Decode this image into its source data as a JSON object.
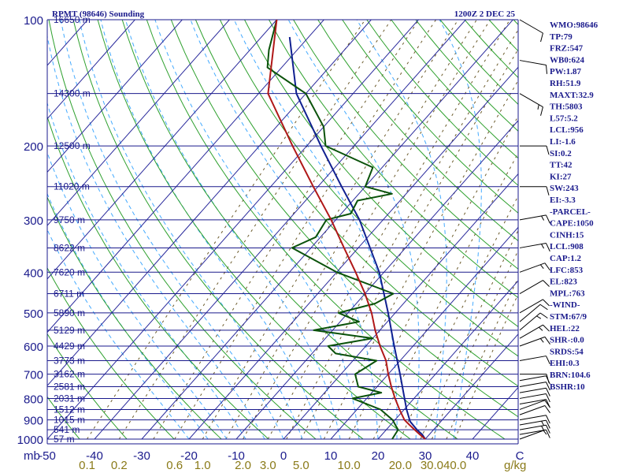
{
  "header": {
    "station": "RPMT (98646) Sounding",
    "time": "1200Z  2 DEC 25"
  },
  "colors": {
    "isobar": "#1a1a8c",
    "isotherm": "#2a2a9c",
    "dry_adiabat": "#2ea02e",
    "moist_adiabat": "#44aaff",
    "mixing_ratio": "#6b5a2a",
    "temperature": "#b01818",
    "dewpoint": "#0a520a",
    "parcel": "#102090",
    "text": "#1a1a8c",
    "mixing_label": "#8a7a18"
  },
  "chart_data": {
    "type": "skew-t",
    "y_scale": "log",
    "ylim": [
      1000,
      100
    ],
    "xlim": [
      -50,
      50
    ],
    "pressure_levels": [
      {
        "p": 100,
        "label": "100",
        "height": "16650 m"
      },
      {
        "p": 150,
        "label": "",
        "height": "14300 m"
      },
      {
        "p": 200,
        "label": "200",
        "height": "12500 m"
      },
      {
        "p": 250,
        "label": "",
        "height": "11020 m"
      },
      {
        "p": 300,
        "label": "300",
        "height": "9750 m"
      },
      {
        "p": 350,
        "label": "",
        "height": "8622 m"
      },
      {
        "p": 400,
        "label": "400",
        "height": "7620 m"
      },
      {
        "p": 450,
        "label": "",
        "height": "6711 m"
      },
      {
        "p": 500,
        "label": "500",
        "height": "5890 m"
      },
      {
        "p": 550,
        "label": "",
        "height": "5129 m"
      },
      {
        "p": 600,
        "label": "600",
        "height": "4429 m"
      },
      {
        "p": 650,
        "label": "",
        "height": "3773 m"
      },
      {
        "p": 700,
        "label": "700",
        "height": "3162 m"
      },
      {
        "p": 750,
        "label": "",
        "height": "2581 m"
      },
      {
        "p": 800,
        "label": "800",
        "height": "2031 m"
      },
      {
        "p": 850,
        "label": "",
        "height": "1512 m"
      },
      {
        "p": 900,
        "label": "900",
        "height": "1015 m"
      },
      {
        "p": 950,
        "label": "",
        "height": "541 m"
      },
      {
        "p": 1000,
        "label": "1000",
        "height": "57 m"
      }
    ],
    "x_axis_label": "mb",
    "temperature_ticks": [
      -50,
      -40,
      -30,
      -20,
      -10,
      0,
      10,
      20,
      30,
      40,
      50
    ],
    "temperature_tick_labels": [
      "-50",
      "-40",
      "-30",
      "-20",
      "-10",
      "0",
      "10",
      "20",
      "30",
      "40",
      "C"
    ],
    "mixing_ratio_ticks": [
      0.1,
      0.2,
      0.6,
      1.0,
      2.0,
      3.0,
      5.0,
      10.0,
      20.0,
      30.0,
      40.0
    ],
    "mixing_ratio_labels": [
      "0.1",
      "0.2",
      "0.6",
      "1.0",
      "2.0",
      "3.0",
      "5.0",
      "10.0",
      "20.0",
      "30.0",
      "40.0"
    ],
    "mixing_ratio_unit": "g/kg",
    "temperature": [
      [
        1000,
        30
      ],
      [
        975,
        28
      ],
      [
        950,
        26
      ],
      [
        925,
        24
      ],
      [
        900,
        22
      ],
      [
        850,
        19
      ],
      [
        800,
        16
      ],
      [
        750,
        13
      ],
      [
        700,
        10
      ],
      [
        650,
        7
      ],
      [
        600,
        3
      ],
      [
        550,
        -1
      ],
      [
        500,
        -5
      ],
      [
        450,
        -10
      ],
      [
        400,
        -16
      ],
      [
        350,
        -23
      ],
      [
        300,
        -31
      ],
      [
        250,
        -41
      ],
      [
        200,
        -53
      ],
      [
        150,
        -68
      ],
      [
        100,
        -80
      ]
    ],
    "dewpoint": [
      [
        1000,
        23
      ],
      [
        950,
        22.5
      ],
      [
        925,
        21
      ],
      [
        900,
        19.5
      ],
      [
        850,
        15
      ],
      [
        800,
        7
      ],
      [
        775,
        12
      ],
      [
        750,
        6
      ],
      [
        700,
        3
      ],
      [
        650,
        5
      ],
      [
        625,
        -5
      ],
      [
        600,
        -8
      ],
      [
        575,
        0
      ],
      [
        550,
        -14
      ],
      [
        525,
        -6
      ],
      [
        500,
        -12
      ],
      [
        475,
        -6
      ],
      [
        450,
        -4
      ],
      [
        400,
        -20
      ],
      [
        350,
        -34
      ],
      [
        330,
        -31
      ],
      [
        300,
        -32
      ],
      [
        290,
        -28
      ],
      [
        270,
        -29
      ],
      [
        260,
        -23
      ],
      [
        250,
        -30
      ],
      [
        225,
        -32
      ],
      [
        200,
        -46
      ],
      [
        180,
        -50
      ],
      [
        150,
        -60
      ],
      [
        130,
        -73
      ],
      [
        118,
        -76
      ],
      [
        100,
        -80
      ]
    ],
    "parcel": [
      [
        1000,
        30
      ],
      [
        975,
        28.5
      ],
      [
        950,
        26.5
      ],
      [
        908,
        23.5
      ],
      [
        850,
        20.5
      ],
      [
        800,
        18
      ],
      [
        700,
        12.5
      ],
      [
        600,
        6
      ],
      [
        500,
        -1.5
      ],
      [
        400,
        -11
      ],
      [
        300,
        -25
      ],
      [
        250,
        -35
      ],
      [
        200,
        -47
      ],
      [
        150,
        -62
      ],
      [
        110,
        -74
      ]
    ],
    "wind_barbs": [
      {
        "p": 1000,
        "dir": 70,
        "spd": 5
      },
      {
        "p": 975,
        "dir": 80,
        "spd": 10
      },
      {
        "p": 950,
        "dir": 80,
        "spd": 15
      },
      {
        "p": 925,
        "dir": 80,
        "spd": 15
      },
      {
        "p": 900,
        "dir": 80,
        "spd": 10
      },
      {
        "p": 875,
        "dir": 70,
        "spd": 10
      },
      {
        "p": 850,
        "dir": 70,
        "spd": 10
      },
      {
        "p": 825,
        "dir": 80,
        "spd": 10
      },
      {
        "p": 800,
        "dir": 80,
        "spd": 10
      },
      {
        "p": 775,
        "dir": 80,
        "spd": 10
      },
      {
        "p": 750,
        "dir": 80,
        "spd": 10
      },
      {
        "p": 725,
        "dir": 80,
        "spd": 10
      },
      {
        "p": 700,
        "dir": 90,
        "spd": 10
      },
      {
        "p": 650,
        "dir": 80,
        "spd": 10
      },
      {
        "p": 600,
        "dir": 70,
        "spd": 15
      },
      {
        "p": 575,
        "dir": 60,
        "spd": 15
      },
      {
        "p": 550,
        "dir": 50,
        "spd": 15
      },
      {
        "p": 525,
        "dir": 50,
        "spd": 10
      },
      {
        "p": 500,
        "dir": 60,
        "spd": 10
      },
      {
        "p": 450,
        "dir": 60,
        "spd": 10
      },
      {
        "p": 400,
        "dir": 70,
        "spd": 15
      },
      {
        "p": 350,
        "dir": 80,
        "spd": 15
      },
      {
        "p": 300,
        "dir": 80,
        "spd": 15
      },
      {
        "p": 250,
        "dir": 90,
        "spd": 10
      },
      {
        "p": 200,
        "dir": 90,
        "spd": 10
      },
      {
        "p": 150,
        "dir": 120,
        "spd": 15
      },
      {
        "p": 125,
        "dir": 100,
        "spd": 10
      },
      {
        "p": 100,
        "dir": 120,
        "spd": 10
      }
    ]
  },
  "indices": [
    "WMO:98646",
    "TP:79",
    "FRZ:547",
    "WB0:624",
    "PW:1.87",
    "RH:51.9",
    "MAXT:32.9",
    "TH:5803",
    "L57:5.2",
    "LCL:956",
    "LI:-1.6",
    "SI:0.2",
    "TT:42",
    "KI:27",
    "SW:243",
    "EI:-3.3",
    "-PARCEL-",
    "CAPE:1050",
    "CINH:15",
    "LCL:908",
    "CAP:1.2",
    "LFC:853",
    "EL:823",
    "MPL:763",
    "-WIND-",
    "STM:67/9",
    "HEL:22",
    "SHR-:0.0",
    "SRDS:54",
    "EHI:0.3",
    "BRN:104.6",
    "BSHR:10"
  ]
}
